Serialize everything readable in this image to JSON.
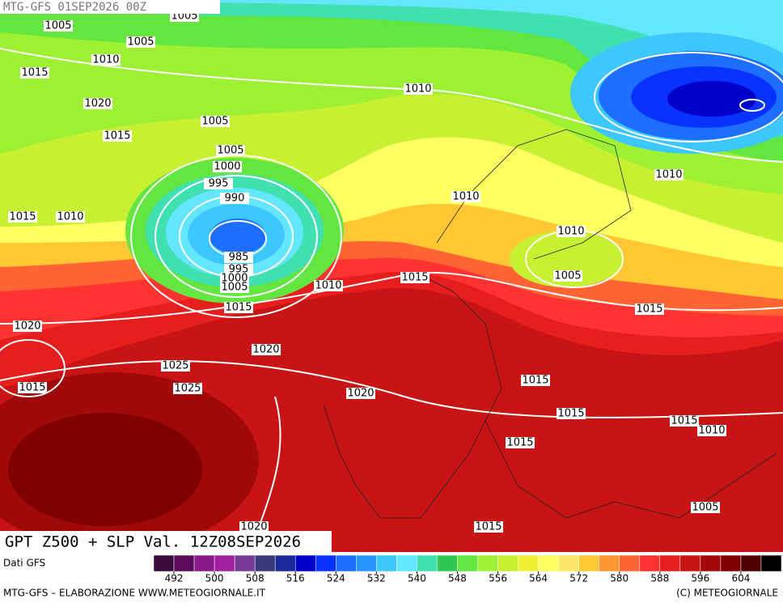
{
  "header": {
    "run": "MTG-GFS 01SEP2026 00Z"
  },
  "map": {
    "title": "GPT Z500 + SLP Val. 12Z08SEP2026",
    "isobar_labels": [
      "1005",
      "1005",
      "1005",
      "1010",
      "1015",
      "1010",
      "1020",
      "1005",
      "1015",
      "1005",
      "1000",
      "995",
      "990",
      "1010",
      "1010",
      "1015",
      "1010",
      "1010",
      "985",
      "995",
      "1000",
      "1005",
      "1010",
      "1015",
      "1005",
      "1015",
      "1015",
      "1020",
      "1020",
      "1025",
      "1015",
      "1025",
      "1020",
      "1015",
      "1015",
      "1015",
      "1010",
      "1015",
      "1005",
      "1015",
      "1020"
    ]
  },
  "colorbar": {
    "source": "Dati GFS",
    "range": [
      488,
      612
    ],
    "colors": [
      "#3a0a3a",
      "#5c0a5c",
      "#8a1a8a",
      "#a020a0",
      "#7a3a9a",
      "#3a3a7a",
      "#1a2a9a",
      "#0000c8",
      "#0a32ff",
      "#1e6eff",
      "#2896ff",
      "#3cc8ff",
      "#64e6ff",
      "#40e0b0",
      "#30c850",
      "#64e640",
      "#9ef032",
      "#c8f032",
      "#f0f032",
      "#ffff64",
      "#ffe664",
      "#ffc832",
      "#ff9632",
      "#ff6432",
      "#ff3232",
      "#e61e1e",
      "#c81414",
      "#a00a0a",
      "#800000",
      "#500000",
      "#000000"
    ],
    "ticks": [
      492,
      500,
      508,
      516,
      524,
      532,
      540,
      548,
      556,
      564,
      572,
      580,
      588,
      596,
      604
    ]
  },
  "footer": {
    "left": "MTG-GFS – ELABORAZIONE WWW.METEOGIORNALE.IT",
    "right": "(C) METEOGIORNALE"
  }
}
